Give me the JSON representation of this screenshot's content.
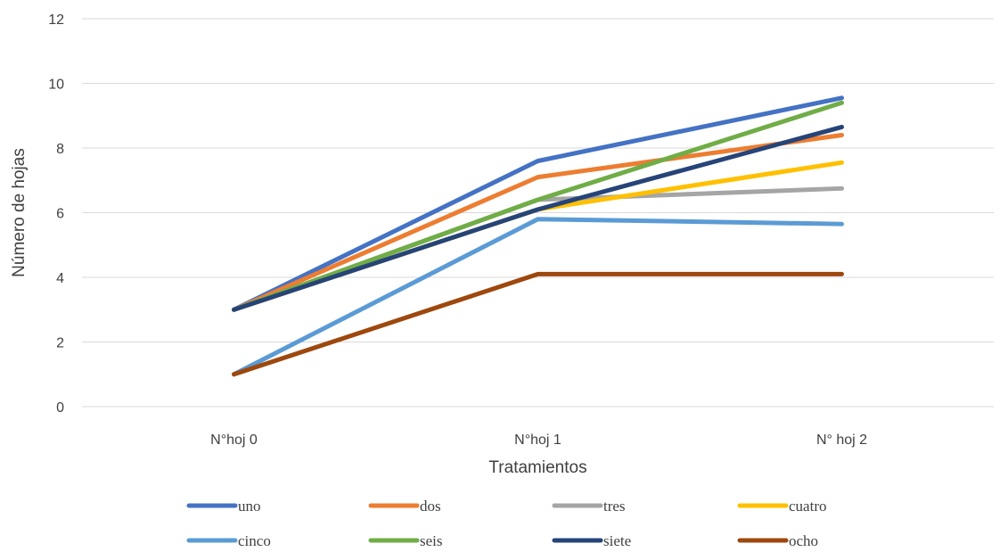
{
  "chart_data": {
    "type": "line",
    "categories": [
      "N°hoj 0",
      "N°hoj 1",
      "N° hoj 2"
    ],
    "xlabel": "Tratamientos",
    "ylabel": "Número de hojas",
    "ylim": [
      0,
      12
    ],
    "yticks": [
      "0",
      "2",
      "4",
      "6",
      "8",
      "10",
      "12"
    ],
    "grid": true,
    "legend_position": "bottom",
    "series": [
      {
        "name": "uno",
        "color": "#4472c4",
        "values": [
          3,
          7.6,
          9.55
        ]
      },
      {
        "name": "dos",
        "color": "#ed7d31",
        "values": [
          3,
          7.1,
          8.4
        ]
      },
      {
        "name": "tres",
        "color": "#a5a5a5",
        "values": [
          3,
          6.4,
          6.75
        ]
      },
      {
        "name": "cuatro",
        "color": "#ffc000",
        "values": [
          3,
          6.1,
          7.55
        ]
      },
      {
        "name": "cinco",
        "color": "#5b9bd5",
        "values": [
          1,
          5.8,
          5.65
        ]
      },
      {
        "name": "seis",
        "color": "#70ad47",
        "values": [
          3,
          6.4,
          9.4
        ]
      },
      {
        "name": "siete",
        "color": "#264478",
        "values": [
          3,
          6.1,
          8.65
        ]
      },
      {
        "name": "ocho",
        "color": "#9e480e",
        "values": [
          1,
          4.1,
          4.1
        ]
      }
    ]
  }
}
